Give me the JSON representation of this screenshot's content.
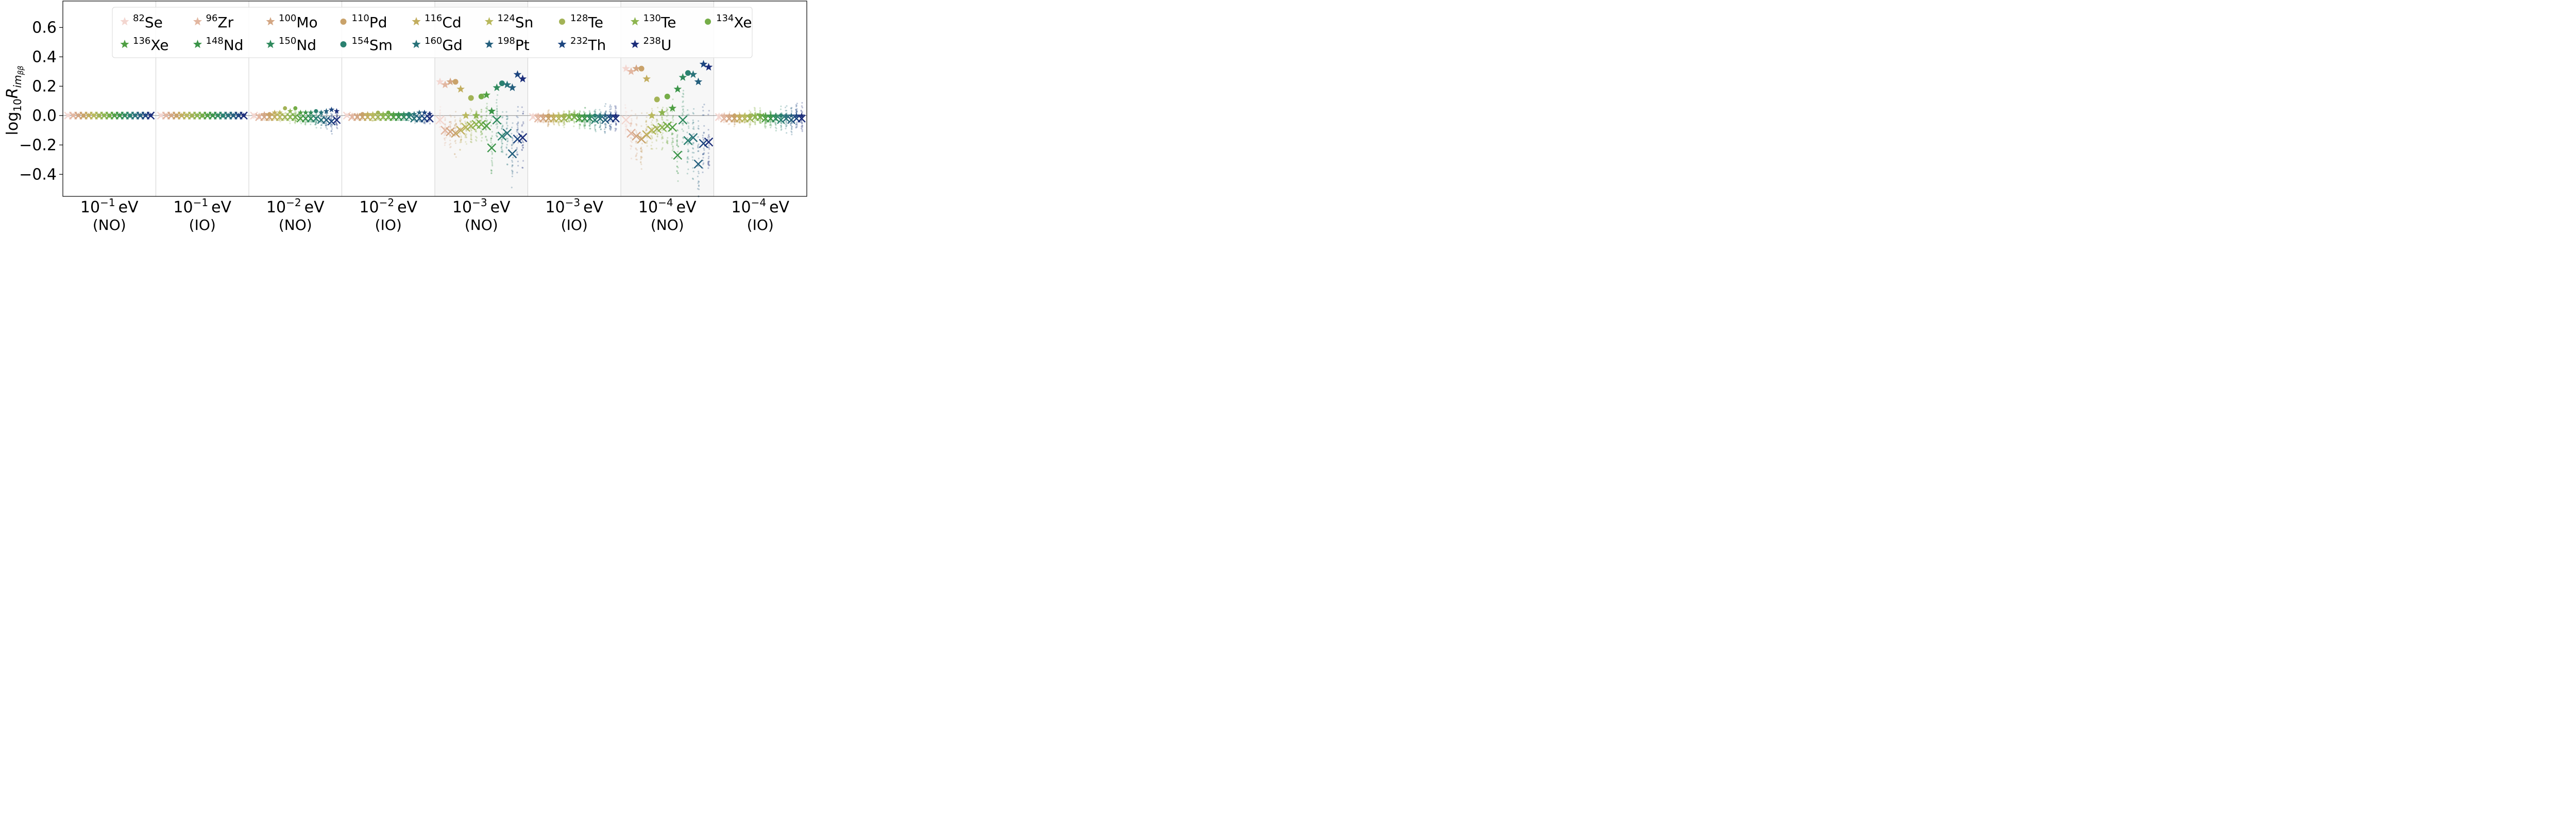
{
  "chart_data": {
    "type": "scatter",
    "ylabel_main": "log",
    "ylabel_sub": "10",
    "ylabel_var": "R",
    "ylabel_var_sub": "im",
    "ylabel_var_sub2": "ββ",
    "ylim": [
      -0.55,
      0.78
    ],
    "yticks": [
      -0.4,
      -0.2,
      0.0,
      0.2,
      0.4,
      0.6
    ],
    "ytick_labels": [
      "−0.4",
      "−0.2",
      "0.0",
      "0.2",
      "0.4",
      "0.6"
    ],
    "legend_placement": "upper-center",
    "panels": [
      {
        "base": "10",
        "exp": "−1",
        "unit": "eV",
        "ordering": "(NO)"
      },
      {
        "base": "10",
        "exp": "−1",
        "unit": "eV",
        "ordering": "(IO)"
      },
      {
        "base": "10",
        "exp": "−2",
        "unit": "eV",
        "ordering": "(NO)"
      },
      {
        "base": "10",
        "exp": "−2",
        "unit": "eV",
        "ordering": "(IO)"
      },
      {
        "base": "10",
        "exp": "−3",
        "unit": "eV",
        "ordering": "(NO)"
      },
      {
        "base": "10",
        "exp": "−3",
        "unit": "eV",
        "ordering": "(IO)"
      },
      {
        "base": "10",
        "exp": "−4",
        "unit": "eV",
        "ordering": "(NO)"
      },
      {
        "base": "10",
        "exp": "−4",
        "unit": "eV",
        "ordering": "(IO)"
      }
    ],
    "series": [
      {
        "mass": "82",
        "element": "Se",
        "marker": "star",
        "color": "#f3d6d0"
      },
      {
        "mass": "96",
        "element": "Zr",
        "marker": "star",
        "color": "#e2b6a0"
      },
      {
        "mass": "100",
        "element": "Mo",
        "marker": "star",
        "color": "#d3a683"
      },
      {
        "mass": "110",
        "element": "Pd",
        "marker": "circle",
        "color": "#c9a26a"
      },
      {
        "mass": "116",
        "element": "Cd",
        "marker": "star",
        "color": "#c2ad5e"
      },
      {
        "mass": "124",
        "element": "Sn",
        "marker": "star",
        "color": "#b8b85c"
      },
      {
        "mass": "128",
        "element": "Te",
        "marker": "circle",
        "color": "#a3b356"
      },
      {
        "mass": "130",
        "element": "Te",
        "marker": "star",
        "color": "#8db54f"
      },
      {
        "mass": "134",
        "element": "Xe",
        "marker": "circle",
        "color": "#75ad48"
      },
      {
        "mass": "136",
        "element": "Xe",
        "marker": "star",
        "color": "#4f9f43"
      },
      {
        "mass": "148",
        "element": "Nd",
        "marker": "star",
        "color": "#3a9448"
      },
      {
        "mass": "150",
        "element": "Nd",
        "marker": "star",
        "color": "#2f8a5d"
      },
      {
        "mass": "154",
        "element": "Sm",
        "marker": "circle",
        "color": "#2a8170"
      },
      {
        "mass": "160",
        "element": "Gd",
        "marker": "star",
        "color": "#287279"
      },
      {
        "mass": "198",
        "element": "Pt",
        "marker": "star",
        "color": "#245f7d"
      },
      {
        "mass": "232",
        "element": "Th",
        "marker": "star",
        "color": "#1d4680"
      },
      {
        "mass": "238",
        "element": "U",
        "marker": "star",
        "color": "#1b2d7a"
      }
    ],
    "symbol_values": [
      [
        0.0,
        0.0,
        0.0,
        0.0,
        0.0,
        0.0,
        0.0,
        0.0,
        0.0,
        0.0,
        0.0,
        0.0,
        0.0,
        0.0,
        0.0,
        0.0,
        0.0
      ],
      [
        0.0,
        0.0,
        0.0,
        0.0,
        0.0,
        0.0,
        0.0,
        0.0,
        0.0,
        0.0,
        0.0,
        0.0,
        0.0,
        0.0,
        0.0,
        0.0,
        0.0
      ],
      [
        0.0,
        0.0,
        0.01,
        0.01,
        0.02,
        0.02,
        0.05,
        0.03,
        0.05,
        0.02,
        0.02,
        0.02,
        0.03,
        0.02,
        0.03,
        0.04,
        0.03
      ],
      [
        0.0,
        0.0,
        0.0,
        0.01,
        0.01,
        0.01,
        0.02,
        0.01,
        0.02,
        0.01,
        0.01,
        0.01,
        0.01,
        0.01,
        0.02,
        0.02,
        0.01
      ],
      [
        0.23,
        0.21,
        0.23,
        0.23,
        0.18,
        0.0,
        0.12,
        0.0,
        0.13,
        0.14,
        0.03,
        0.19,
        0.22,
        0.21,
        0.19,
        0.28,
        0.25
      ],
      [
        0.0,
        0.0,
        0.0,
        0.0,
        0.0,
        0.0,
        0.0,
        0.0,
        0.0,
        0.0,
        0.0,
        0.0,
        0.0,
        0.0,
        0.0,
        0.0,
        0.0
      ],
      [
        0.32,
        0.3,
        0.32,
        0.32,
        0.25,
        0.0,
        0.11,
        0.02,
        0.13,
        0.05,
        0.18,
        0.26,
        0.29,
        0.28,
        0.23,
        0.35,
        0.33
      ],
      [
        0.0,
        0.0,
        0.0,
        0.0,
        0.0,
        0.0,
        0.0,
        0.0,
        0.0,
        0.0,
        0.0,
        0.0,
        0.0,
        0.0,
        0.0,
        0.0,
        0.0
      ]
    ],
    "cross_values": [
      [
        0.0,
        0.0,
        0.0,
        0.0,
        0.0,
        0.0,
        0.0,
        0.0,
        0.0,
        0.0,
        0.0,
        0.0,
        0.0,
        0.0,
        0.0,
        0.0,
        0.0
      ],
      [
        0.0,
        0.0,
        0.0,
        0.0,
        0.0,
        0.0,
        0.0,
        0.0,
        0.0,
        0.0,
        0.0,
        0.0,
        0.0,
        0.0,
        0.0,
        0.0,
        0.0
      ],
      [
        0.0,
        -0.01,
        -0.01,
        -0.01,
        -0.01,
        -0.01,
        -0.01,
        -0.01,
        -0.01,
        -0.02,
        -0.02,
        -0.02,
        -0.02,
        -0.03,
        -0.03,
        -0.04,
        -0.03
      ],
      [
        0.0,
        -0.01,
        -0.01,
        -0.01,
        -0.01,
        -0.01,
        -0.01,
        -0.01,
        -0.01,
        -0.01,
        -0.01,
        -0.01,
        -0.01,
        -0.02,
        -0.02,
        -0.02,
        -0.02
      ],
      [
        -0.03,
        -0.1,
        -0.11,
        -0.12,
        -0.1,
        -0.08,
        -0.07,
        -0.06,
        -0.06,
        -0.07,
        -0.22,
        -0.03,
        -0.14,
        -0.12,
        -0.26,
        -0.16,
        -0.15
      ],
      [
        -0.01,
        -0.02,
        -0.02,
        -0.02,
        -0.02,
        -0.02,
        -0.02,
        -0.01,
        -0.01,
        -0.02,
        -0.02,
        -0.02,
        -0.03,
        -0.02,
        -0.03,
        -0.02,
        -0.02
      ],
      [
        -0.03,
        -0.12,
        -0.14,
        -0.16,
        -0.13,
        -0.1,
        -0.09,
        -0.08,
        -0.07,
        -0.08,
        -0.27,
        -0.03,
        -0.17,
        -0.15,
        -0.33,
        -0.19,
        -0.18
      ],
      [
        -0.01,
        -0.02,
        -0.02,
        -0.02,
        -0.02,
        -0.02,
        -0.02,
        -0.01,
        -0.01,
        -0.02,
        -0.02,
        -0.02,
        -0.03,
        -0.02,
        -0.03,
        -0.02,
        -0.02
      ]
    ],
    "spread": [
      [
        0.004,
        0.004,
        0.004,
        0.004,
        0.004,
        0.004,
        0.004,
        0.004,
        0.004,
        0.004,
        0.004,
        0.004,
        0.004,
        0.004,
        0.004,
        0.004,
        0.004
      ],
      [
        0.004,
        0.004,
        0.004,
        0.004,
        0.004,
        0.004,
        0.004,
        0.004,
        0.004,
        0.004,
        0.004,
        0.004,
        0.004,
        0.004,
        0.004,
        0.004,
        0.004
      ],
      [
        0.02,
        0.02,
        0.03,
        0.03,
        0.04,
        0.04,
        0.05,
        0.05,
        0.06,
        0.05,
        0.05,
        0.06,
        0.07,
        0.08,
        0.08,
        0.09,
        0.09
      ],
      [
        0.01,
        0.02,
        0.02,
        0.02,
        0.03,
        0.03,
        0.03,
        0.03,
        0.03,
        0.03,
        0.03,
        0.03,
        0.04,
        0.04,
        0.04,
        0.05,
        0.05
      ],
      [
        0.1,
        0.14,
        0.16,
        0.18,
        0.16,
        0.15,
        0.15,
        0.14,
        0.14,
        0.18,
        0.24,
        0.2,
        0.25,
        0.26,
        0.3,
        0.27,
        0.26
      ],
      [
        0.03,
        0.05,
        0.05,
        0.06,
        0.06,
        0.06,
        0.07,
        0.07,
        0.07,
        0.07,
        0.08,
        0.09,
        0.1,
        0.11,
        0.12,
        0.12,
        0.12
      ],
      [
        0.12,
        0.18,
        0.2,
        0.22,
        0.2,
        0.19,
        0.18,
        0.18,
        0.17,
        0.22,
        0.29,
        0.24,
        0.3,
        0.32,
        0.36,
        0.33,
        0.32
      ],
      [
        0.03,
        0.05,
        0.05,
        0.06,
        0.06,
        0.06,
        0.07,
        0.07,
        0.07,
        0.07,
        0.08,
        0.09,
        0.1,
        0.11,
        0.12,
        0.12,
        0.12
      ]
    ]
  }
}
